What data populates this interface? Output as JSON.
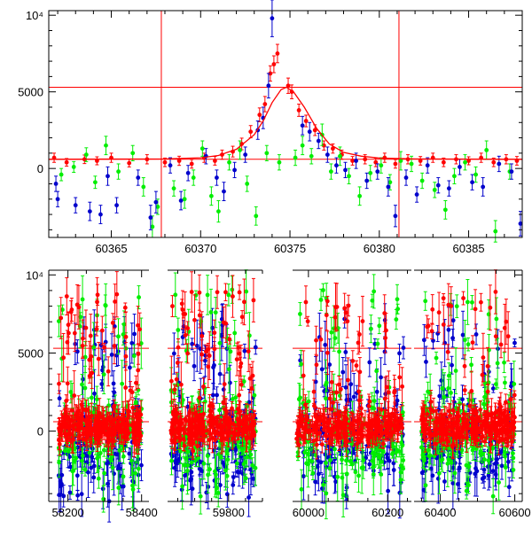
{
  "colors": {
    "fit": "#ff0000",
    "red": "#ff0000",
    "green": "#00ee00",
    "blue": "#0000cc",
    "axis": "#000000"
  },
  "chart_data": [
    {
      "type": "scatter",
      "title": "",
      "xlabel": "",
      "ylabel": "",
      "xlim": [
        60361.5,
        60388
      ],
      "ylim": [
        -4500,
        10300
      ],
      "xticks": [
        60365,
        60370,
        60375,
        60380,
        60385
      ],
      "xtick_labels": [
        "60365",
        "60370",
        "60375",
        "60380",
        "60385"
      ],
      "yticks": [
        0,
        5000,
        10000
      ],
      "ytick_labels": [
        "0",
        "5000",
        "10⁴"
      ],
      "ref_lines": {
        "horizontal": [
          5300,
          600
        ],
        "vertical": [
          60367.8,
          60381.1
        ]
      },
      "fit_curve": {
        "x": [
          60361.5,
          60368,
          60370,
          60371,
          60372,
          60373,
          60373.5,
          60374,
          60374.5,
          60374.8,
          60375.2,
          60375.8,
          60376.5,
          60377.2,
          60378,
          60379,
          60380,
          60382,
          60388
        ],
        "y": [
          600,
          620,
          700,
          850,
          1250,
          2200,
          3100,
          4300,
          5150,
          5300,
          5000,
          4000,
          2600,
          1600,
          1050,
          800,
          680,
          620,
          600
        ]
      },
      "series": [
        {
          "color": "red",
          "points": [
            [
              60361.8,
              700,
              300
            ],
            [
              60362.5,
              400,
              250
            ],
            [
              60363.5,
              600,
              280
            ],
            [
              60364.2,
              500,
              260
            ],
            [
              60365.0,
              700,
              300
            ],
            [
              60366.0,
              350,
              250
            ],
            [
              60367.0,
              600,
              300
            ],
            [
              60368.0,
              400,
              280
            ],
            [
              60368.8,
              500,
              300
            ],
            [
              60369.5,
              300,
              280
            ],
            [
              60370.2,
              700,
              300
            ],
            [
              60370.8,
              500,
              280
            ],
            [
              60371.2,
              900,
              300
            ],
            [
              60371.8,
              1100,
              350
            ],
            [
              60372.3,
              1600,
              380
            ],
            [
              60372.8,
              2400,
              400
            ],
            [
              60373.3,
              3500,
              450
            ],
            [
              60373.6,
              4200,
              500
            ],
            [
              60373.9,
              6200,
              500
            ],
            [
              60374.1,
              6800,
              550
            ],
            [
              60374.3,
              7500,
              600
            ],
            [
              60374.9,
              5400,
              500
            ],
            [
              60375.1,
              5000,
              450
            ],
            [
              60375.5,
              3800,
              400
            ],
            [
              60375.9,
              3100,
              380
            ],
            [
              60376.4,
              2500,
              350
            ],
            [
              60376.9,
              1500,
              300
            ],
            [
              60377.4,
              1300,
              300
            ],
            [
              60377.9,
              900,
              300
            ],
            [
              60378.5,
              500,
              280
            ],
            [
              60379.2,
              600,
              300
            ],
            [
              60379.8,
              400,
              280
            ],
            [
              60380.3,
              700,
              300
            ],
            [
              60380.9,
              300,
              280
            ],
            [
              60381.6,
              600,
              300
            ],
            [
              60382.3,
              500,
              280
            ],
            [
              60383.0,
              700,
              300
            ],
            [
              60383.6,
              400,
              280
            ],
            [
              60384.3,
              600,
              300
            ],
            [
              60385.0,
              500,
              260
            ],
            [
              60385.7,
              700,
              300
            ],
            [
              60386.4,
              400,
              280
            ],
            [
              60387.1,
              600,
              300
            ],
            [
              60387.7,
              500,
              280
            ]
          ]
        },
        {
          "color": "green",
          "points": [
            [
              60362.2,
              -400,
              400
            ],
            [
              60362.9,
              100,
              350
            ],
            [
              60363.6,
              900,
              450
            ],
            [
              60364.1,
              -900,
              400
            ],
            [
              60364.7,
              1500,
              600
            ],
            [
              60365.4,
              -200,
              500
            ],
            [
              60366.2,
              1000,
              500
            ],
            [
              60366.8,
              -1200,
              600
            ],
            [
              60367.3,
              -3800,
              700
            ],
            [
              60367.6,
              -2500,
              500
            ],
            [
              60368.5,
              -1300,
              500
            ],
            [
              60369.1,
              -2000,
              600
            ],
            [
              60369.6,
              -600,
              500
            ],
            [
              60370.1,
              1300,
              500
            ],
            [
              60370.6,
              -1800,
              600
            ],
            [
              60371.0,
              -2800,
              700
            ],
            [
              60371.6,
              400,
              500
            ],
            [
              60372.2,
              1200,
              600
            ],
            [
              60372.6,
              -1000,
              500
            ],
            [
              60373.1,
              -3100,
              600
            ],
            [
              60373.7,
              1000,
              500
            ],
            [
              60374.4,
              400,
              500
            ],
            [
              60375.3,
              700,
              500
            ],
            [
              60375.7,
              1500,
              600
            ],
            [
              60376.2,
              800,
              500
            ],
            [
              60376.8,
              2200,
              700
            ],
            [
              60377.3,
              -200,
              500
            ],
            [
              60377.8,
              800,
              600
            ],
            [
              60378.3,
              -500,
              500
            ],
            [
              60378.9,
              -1800,
              600
            ],
            [
              60379.5,
              -300,
              500
            ],
            [
              60380.1,
              200,
              500
            ],
            [
              60380.6,
              -900,
              500
            ],
            [
              60381.2,
              500,
              600
            ],
            [
              60381.8,
              300,
              500
            ],
            [
              60382.4,
              -800,
              500
            ],
            [
              60383.1,
              -1400,
              500
            ],
            [
              60383.7,
              -2700,
              600
            ],
            [
              60384.2,
              -500,
              500
            ],
            [
              60384.8,
              400,
              500
            ],
            [
              60385.4,
              -400,
              500
            ],
            [
              60386.0,
              1200,
              600
            ],
            [
              60386.5,
              -4100,
              700
            ],
            [
              60387.3,
              -200,
              500
            ]
          ]
        },
        {
          "color": "blue",
          "points": [
            [
              60361.9,
              -1000,
              500
            ],
            [
              60362.0,
              -2000,
              500
            ],
            [
              60363.0,
              -2400,
              500
            ],
            [
              60363.8,
              -2800,
              600
            ],
            [
              60364.4,
              -3000,
              600
            ],
            [
              60364.8,
              -500,
              600
            ],
            [
              60365.3,
              -2400,
              500
            ],
            [
              60366.5,
              -600,
              500
            ],
            [
              60367.2,
              -3200,
              800
            ],
            [
              60367.5,
              -2200,
              700
            ],
            [
              60368.3,
              200,
              500
            ],
            [
              60368.9,
              -2100,
              600
            ],
            [
              60369.3,
              -300,
              500
            ],
            [
              60370.3,
              800,
              500
            ],
            [
              60370.9,
              -600,
              500
            ],
            [
              60371.3,
              -1500,
              600
            ],
            [
              60371.9,
              -100,
              500
            ],
            [
              60372.5,
              900,
              500
            ],
            [
              60373.2,
              2500,
              600
            ],
            [
              60373.5,
              3300,
              700
            ],
            [
              60373.8,
              5400,
              800
            ],
            [
              60374.0,
              9800,
              1200
            ],
            [
              60375.7,
              2800,
              600
            ],
            [
              60376.1,
              2400,
              600
            ],
            [
              60376.6,
              1800,
              500
            ],
            [
              60377.1,
              900,
              500
            ],
            [
              60377.6,
              200,
              500
            ],
            [
              60378.1,
              -100,
              500
            ],
            [
              60378.7,
              500,
              500
            ],
            [
              60379.3,
              -800,
              500
            ],
            [
              60379.9,
              -200,
              500
            ],
            [
              60380.5,
              -1200,
              600
            ],
            [
              60380.9,
              -3100,
              700
            ],
            [
              60381.5,
              -600,
              500
            ],
            [
              60382.1,
              -1700,
              500
            ],
            [
              60382.7,
              200,
              500
            ],
            [
              60383.3,
              -1100,
              500
            ],
            [
              60383.9,
              -1300,
              500
            ],
            [
              60384.5,
              100,
              500
            ],
            [
              60385.2,
              -900,
              500
            ],
            [
              60385.8,
              -1200,
              600
            ],
            [
              60386.7,
              300,
              500
            ],
            [
              60387.4,
              -200,
              500
            ],
            [
              60387.9,
              -3600,
              800
            ]
          ]
        }
      ]
    },
    {
      "type": "scatter",
      "title": "",
      "xlabel": "",
      "ylabel": "",
      "ylim": [
        -4500,
        10300
      ],
      "yticks": [
        0,
        5000,
        10000
      ],
      "ytick_labels": [
        "0",
        "5000",
        "10⁴"
      ],
      "ref_lines": {
        "horizontal": [
          5300,
          600
        ]
      },
      "segments": [
        {
          "xlim": [
            58160,
            58420
          ],
          "xticks": [
            58200,
            58400
          ],
          "xtick_labels": [
            "58200",
            "58400"
          ],
          "clusters": [
            [
              58175,
              58400
            ]
          ]
        },
        {
          "xlim": [
            59620,
            59900
          ],
          "xticks": [
            59800
          ],
          "xtick_labels": [
            "59800"
          ],
          "clusters": [
            [
              59630,
              59880
            ]
          ]
        },
        {
          "xlim": [
            59960,
            60260
          ],
          "xticks": [
            60000,
            60200
          ],
          "xtick_labels": [
            "60000",
            "60200"
          ],
          "clusters": [
            [
              59970,
              60240
            ]
          ]
        },
        {
          "xlim": [
            60330,
            60620
          ],
          "xticks": [
            60400,
            60600
          ],
          "xtick_labels": [
            "60400",
            "60600"
          ],
          "clusters": [
            [
              60350,
              60600
            ]
          ]
        }
      ]
    }
  ]
}
